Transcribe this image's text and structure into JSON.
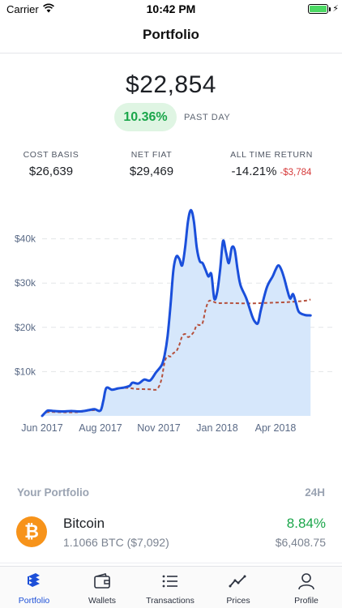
{
  "status_bar": {
    "carrier": "Carrier",
    "time": "10:42 PM"
  },
  "nav": {
    "title": "Portfolio"
  },
  "summary": {
    "balance": "$22,854",
    "change_percent": "10.36%",
    "change_period": "PAST DAY"
  },
  "stats": {
    "cost_basis_label": "COST BASIS",
    "cost_basis_value": "$26,639",
    "net_fiat_label": "NET FIAT",
    "net_fiat_value": "$29,469",
    "all_time_label": "ALL TIME RETURN",
    "all_time_percent": "-14.21%",
    "all_time_amount": "-$3,784"
  },
  "chart_data": {
    "type": "line",
    "x_tick_labels": [
      "Jun 2017",
      "Aug 2017",
      "Nov 2017",
      "Jan 2018",
      "Apr 2018"
    ],
    "y_tick_labels": [
      "$40k",
      "$30k",
      "$20k",
      "$10k"
    ],
    "y_ticks": [
      40000,
      30000,
      20000,
      10000
    ],
    "ylim": [
      0,
      50000
    ],
    "xlim": [
      0,
      100
    ],
    "x_tick_positions": [
      0,
      20,
      40,
      60,
      80
    ],
    "grid": true,
    "series": [
      {
        "style": "solid-area",
        "color": "#1a4fdb",
        "fill": "#d6e7fb",
        "points": [
          [
            0,
            0
          ],
          [
            1,
            700
          ],
          [
            2,
            1200
          ],
          [
            4,
            1100
          ],
          [
            7,
            1000
          ],
          [
            10,
            1100
          ],
          [
            13,
            1000
          ],
          [
            16,
            1300
          ],
          [
            18,
            1500
          ],
          [
            20,
            1200
          ],
          [
            21,
            3500
          ],
          [
            22,
            6300
          ],
          [
            24,
            5900
          ],
          [
            26,
            6200
          ],
          [
            28,
            6400
          ],
          [
            30,
            6800
          ],
          [
            31,
            7500
          ],
          [
            33,
            7300
          ],
          [
            35,
            8200
          ],
          [
            37,
            8000
          ],
          [
            39,
            9800
          ],
          [
            41,
            11500
          ],
          [
            42,
            13800
          ],
          [
            43,
            18000
          ],
          [
            44,
            25000
          ],
          [
            45,
            33000
          ],
          [
            46,
            36000
          ],
          [
            47,
            35500
          ],
          [
            48,
            34000
          ],
          [
            49,
            38000
          ],
          [
            50,
            44000
          ],
          [
            51,
            46500
          ],
          [
            52,
            44000
          ],
          [
            53,
            38000
          ],
          [
            54,
            35000
          ],
          [
            55,
            34500
          ],
          [
            56,
            33000
          ],
          [
            57,
            31500
          ],
          [
            58,
            32000
          ],
          [
            59,
            26500
          ],
          [
            60,
            28000
          ],
          [
            61,
            33000
          ],
          [
            62,
            39500
          ],
          [
            63,
            37000
          ],
          [
            64,
            34500
          ],
          [
            65,
            38000
          ],
          [
            66,
            37500
          ],
          [
            67,
            33000
          ],
          [
            68,
            29500
          ],
          [
            70,
            26500
          ],
          [
            72,
            22500
          ],
          [
            73,
            21200
          ],
          [
            74,
            21000
          ],
          [
            75,
            24000
          ],
          [
            77,
            29000
          ],
          [
            79,
            31500
          ],
          [
            80,
            33000
          ],
          [
            81,
            34000
          ],
          [
            82,
            33000
          ],
          [
            83,
            31000
          ],
          [
            84,
            28500
          ],
          [
            85,
            26500
          ],
          [
            86,
            27500
          ],
          [
            87,
            25500
          ],
          [
            88,
            23500
          ],
          [
            90,
            22800
          ],
          [
            92,
            22700
          ]
        ]
      },
      {
        "style": "dashed",
        "color": "#b5503c",
        "points": [
          [
            0,
            0
          ],
          [
            1,
            700
          ],
          [
            3,
            900
          ],
          [
            7,
            800
          ],
          [
            10,
            800
          ],
          [
            13,
            900
          ],
          [
            16,
            1200
          ],
          [
            18,
            1300
          ],
          [
            20,
            1300
          ],
          [
            21,
            3600
          ],
          [
            22,
            6200
          ],
          [
            24,
            5900
          ],
          [
            26,
            6200
          ],
          [
            28,
            6300
          ],
          [
            30,
            6300
          ],
          [
            32,
            6100
          ],
          [
            37,
            6000
          ],
          [
            39,
            5900
          ],
          [
            40,
            6600
          ],
          [
            41,
            8500
          ],
          [
            42,
            12200
          ],
          [
            43,
            13500
          ],
          [
            44,
            13400
          ],
          [
            45,
            14200
          ],
          [
            46,
            14600
          ],
          [
            47,
            16000
          ],
          [
            48,
            18000
          ],
          [
            49,
            18500
          ],
          [
            50,
            17800
          ],
          [
            51,
            18200
          ],
          [
            52,
            19000
          ],
          [
            53,
            20500
          ],
          [
            54,
            20500
          ],
          [
            55,
            21000
          ],
          [
            56,
            24000
          ],
          [
            57,
            25800
          ],
          [
            58,
            26000
          ],
          [
            60,
            25500
          ],
          [
            64,
            25500
          ],
          [
            70,
            25400
          ],
          [
            76,
            25500
          ],
          [
            84,
            25700
          ],
          [
            90,
            26000
          ],
          [
            92,
            26300
          ]
        ]
      }
    ]
  },
  "portfolio": {
    "header": "Your Portfolio",
    "period": "24H",
    "assets": [
      {
        "name": "Bitcoin",
        "symbol_glyph": "₿",
        "holding": "1.1066 BTC ($7,092)",
        "change": "8.84%",
        "price": "$6,408.75",
        "color": "#f7931a"
      }
    ]
  },
  "tabs": [
    {
      "label": "Portfolio",
      "icon": "portfolio-icon",
      "active": true
    },
    {
      "label": "Wallets",
      "icon": "wallet-icon",
      "active": false
    },
    {
      "label": "Transactions",
      "icon": "list-icon",
      "active": false
    },
    {
      "label": "Prices",
      "icon": "trend-icon",
      "active": false
    },
    {
      "label": "Profile",
      "icon": "profile-icon",
      "active": false
    }
  ]
}
